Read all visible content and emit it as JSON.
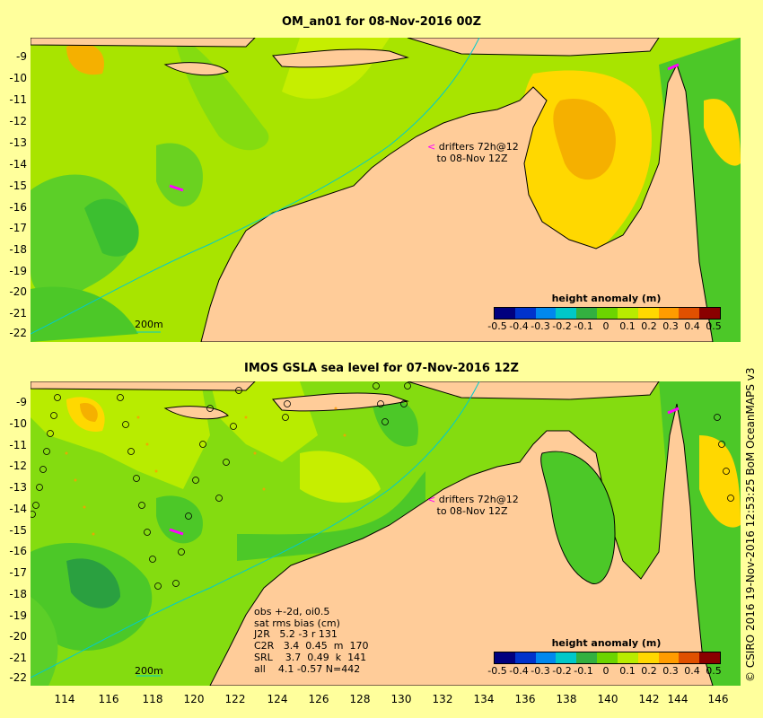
{
  "top_panel": {
    "title": "OM_an01 for 08-Nov-2016 00Z",
    "drifter_note_line1": "drifters 72h@12",
    "drifter_note_line2": "to 08-Nov 12Z",
    "scale_label": "200m",
    "legend_title": "height anomaly (m)",
    "y_ticks": [
      "-9",
      "-10",
      "-11",
      "-12",
      "-13",
      "-14",
      "-15",
      "-16",
      "-17",
      "-18",
      "-19",
      "-20",
      "-21",
      "-22"
    ]
  },
  "bottom_panel": {
    "title": "IMOS GSLA sea level  for 07-Nov-2016 12Z",
    "drifter_note_line1": "drifters 72h@12",
    "drifter_note_line2": "to 08-Nov 12Z",
    "scale_label": "200m",
    "legend_title": "height anomaly (m)",
    "y_ticks": [
      "-9",
      "-10",
      "-11",
      "-12",
      "-13",
      "-14",
      "-15",
      "-16",
      "-17",
      "-18",
      "-19",
      "-20",
      "-21",
      "-22"
    ],
    "stats": {
      "line1": "obs +-2d, oi0.5",
      "line2": "sat rms bias (cm)",
      "line3": "J2R   5.2 -3 r 131",
      "line4": "C2R   3.4  0.45  m  170",
      "line5": "SRL    3.7  0.49  k  141",
      "line6": "all    4.1 -0.57 N=442"
    }
  },
  "x_ticks": [
    "114",
    "116",
    "118",
    "120",
    "122",
    "124",
    "126",
    "128",
    "130",
    "132",
    "134",
    "136",
    "138",
    "140",
    "142",
    "144",
    "146"
  ],
  "legend_ticks": [
    "-0.5",
    "-0.4",
    "-0.3",
    "-0.2",
    "-0.1",
    "0",
    "0.1",
    "0.2",
    "0.3",
    "0.4",
    "0.5"
  ],
  "legend_colors": [
    "#00007f",
    "#0033cc",
    "#0088ee",
    "#00c8c8",
    "#33b040",
    "#6cd400",
    "#b8ec00",
    "#ffd800",
    "#ff9c00",
    "#e05000",
    "#8a0000"
  ],
  "credit": "© CSIRO 2016   19-Nov-2016 12:53:25 BoM OceanMAPS v3",
  "colors": {
    "background": "#ffff9c",
    "land": "#ffcc99",
    "shelf": "#999999"
  }
}
